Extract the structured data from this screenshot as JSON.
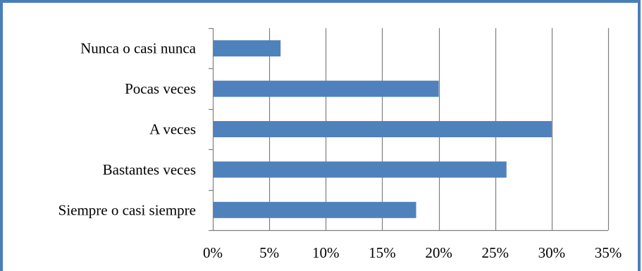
{
  "chart_data": {
    "type": "bar",
    "orientation": "horizontal",
    "categories": [
      "Nunca o casi nunca",
      "Pocas veces",
      "A veces",
      "Bastantes veces",
      "Siempre o casi siempre"
    ],
    "values": [
      6,
      20,
      30,
      26,
      18
    ],
    "value_unit": "%",
    "xlim": [
      0,
      35
    ],
    "xticks": [
      0,
      5,
      10,
      15,
      20,
      25,
      30,
      35
    ],
    "xtick_labels": [
      "0%",
      "5%",
      "10%",
      "15%",
      "20%",
      "25%",
      "30%",
      "35%"
    ],
    "title": "",
    "xlabel": "",
    "ylabel": "",
    "grid": "vertical",
    "legend": "none",
    "bar_color": "#4F81BD",
    "grid_color": "#7F7F7F",
    "frame_color": "#4A7EBB"
  }
}
